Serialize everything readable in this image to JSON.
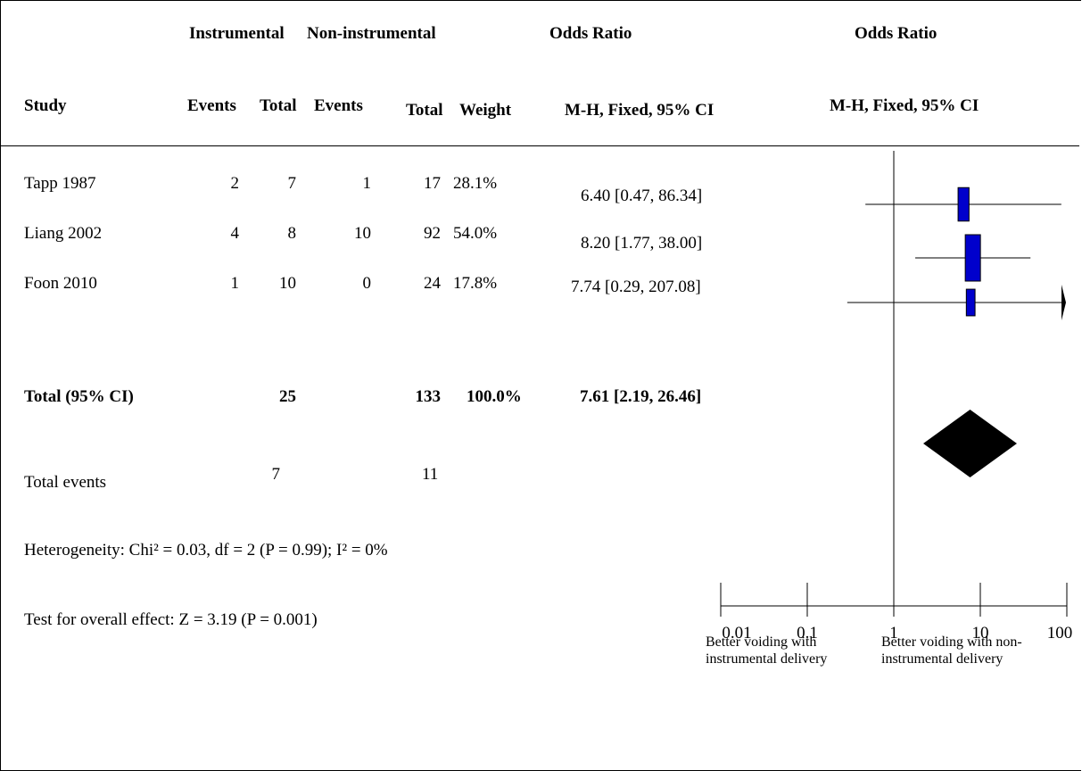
{
  "header": {
    "group1": "Instrumental",
    "group2": "Non-instrumental",
    "or_title_table": "Odds Ratio",
    "or_title_plot": "Odds Ratio",
    "study": "Study",
    "events1": "Events",
    "total1": "Total",
    "events2": "Events",
    "total2": "Total",
    "weight": "Weight",
    "method_table": "M-H, Fixed, 95% CI",
    "method_plot": "M-H, Fixed, 95% CI"
  },
  "studies": [
    {
      "name": "Tapp 1987",
      "events1": "2",
      "total1": "7",
      "events2": "1",
      "total2": "17",
      "weight": "28.1%",
      "ci_text": "6.40 [0.47, 86.34]"
    },
    {
      "name": "Liang 2002",
      "events1": "4",
      "total1": "8",
      "events2": "10",
      "total2": "92",
      "weight": "54.0%",
      "ci_text": "8.20 [1.77, 38.00]"
    },
    {
      "name": "Foon 2010",
      "events1": "1",
      "total1": "10",
      "events2": "0",
      "total2": "24",
      "weight": "17.8%",
      "ci_text": "7.74 [0.29, 207.08]"
    }
  ],
  "total": {
    "label": "Total (95% CI)",
    "total1": "25",
    "total2": "133",
    "weight": "100.0%",
    "ci_text": "7.61 [2.19, 26.46]"
  },
  "total_events": {
    "label": "Total events",
    "events1": "7",
    "events2": "11"
  },
  "heterogeneity": "Heterogeneity: Chi² = 0.03, df = 2 (P = 0.99); I² = 0%",
  "overall_effect": "Test for overall effect: Z = 3.19 (P = 0.001)",
  "favours": {
    "left": "Better voiding with instrumental delivery",
    "right": "Better voiding with non-instrumental delivery"
  },
  "chart_data": {
    "type": "forest",
    "scale": "log",
    "xlim": [
      0.01,
      100
    ],
    "ticks": [
      0.01,
      0.1,
      1,
      10,
      100
    ],
    "tick_labels": [
      "0.01",
      "0.1",
      "1",
      "10",
      "100"
    ],
    "null_line": 1,
    "studies": [
      {
        "name": "Tapp 1987",
        "or": 6.4,
        "lower": 0.47,
        "upper": 86.34,
        "weight": 28.1
      },
      {
        "name": "Liang 2002",
        "or": 8.2,
        "lower": 1.77,
        "upper": 38.0,
        "weight": 54.0
      },
      {
        "name": "Foon 2010",
        "or": 7.74,
        "lower": 0.29,
        "upper": 207.08,
        "weight": 17.8
      }
    ],
    "pooled": {
      "or": 7.61,
      "lower": 2.19,
      "upper": 26.46
    },
    "colors": {
      "box": "#0000cc",
      "diamond": "#000000",
      "line": "#000000"
    }
  }
}
